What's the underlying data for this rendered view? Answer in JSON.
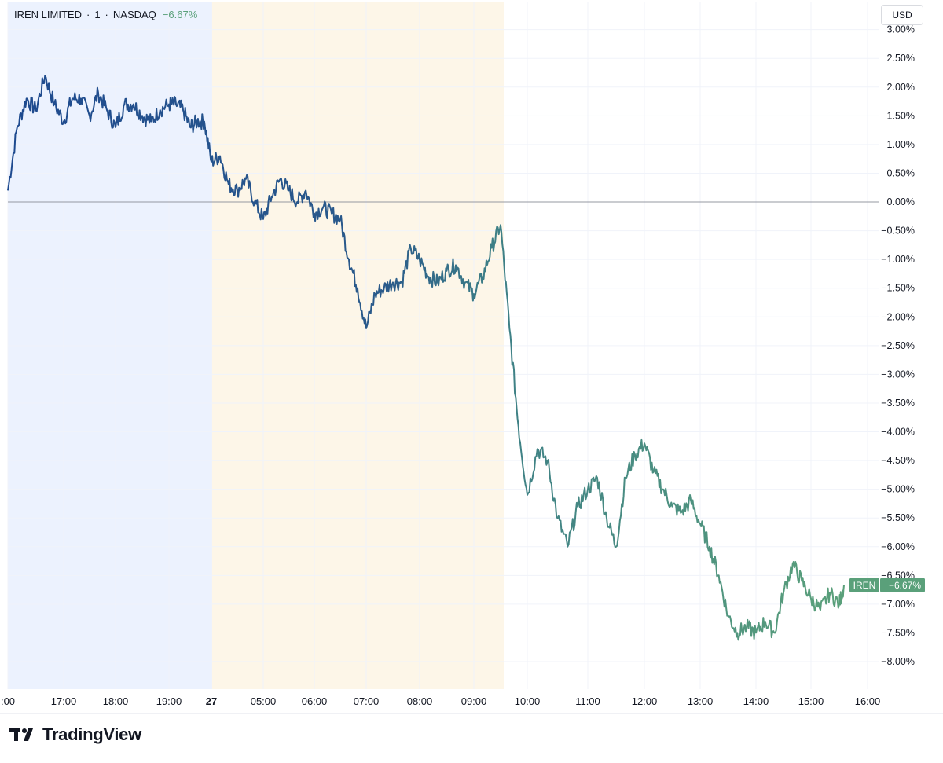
{
  "legend": {
    "symbol": "IREN LIMITED",
    "separator1": "·",
    "interval": "1",
    "separator2": "·",
    "exchange": "NASDAQ",
    "change": "−6.67%"
  },
  "currency_label": "USD",
  "brand": "TradingView",
  "colors": {
    "premarket_bg": "#ecf2fe",
    "postmarket_bg": "#fdf6e8",
    "early_line": "#1e4a8f",
    "late_line": "#5aa07a",
    "grid": "#f0f3fa",
    "zero_line": "#9598a1",
    "badge": "#5aa07a"
  },
  "chart_data": {
    "type": "line",
    "series": [
      {
        "name": "IREN",
        "x": [
          "16:00",
          "16:10",
          "16:20",
          "16:30",
          "16:40",
          "16:50",
          "17:00",
          "17:10",
          "17:20",
          "17:30",
          "17:40",
          "17:50",
          "18:00",
          "18:10",
          "18:20",
          "18:30",
          "18:40",
          "18:50",
          "19:00",
          "19:10",
          "19:20",
          "19:30",
          "19:40",
          "19:50",
          "04:00",
          "04:10",
          "04:20",
          "04:30",
          "04:40",
          "04:50",
          "05:00",
          "05:10",
          "05:20",
          "05:30",
          "05:40",
          "05:50",
          "06:00",
          "06:10",
          "06:20",
          "06:30",
          "06:40",
          "06:50",
          "07:00",
          "07:10",
          "07:20",
          "07:30",
          "07:40",
          "07:50",
          "08:00",
          "08:10",
          "08:20",
          "08:30",
          "08:40",
          "08:50",
          "09:00",
          "09:10",
          "09:20",
          "09:30",
          "09:40",
          "09:50",
          "10:00",
          "10:10",
          "10:20",
          "10:30",
          "10:40",
          "10:50",
          "11:00",
          "11:10",
          "11:20",
          "11:30",
          "11:40",
          "11:50",
          "12:00",
          "12:10",
          "12:20",
          "12:30",
          "12:40",
          "12:50",
          "13:00",
          "13:10",
          "13:20",
          "13:30",
          "13:40",
          "13:50",
          "14:00",
          "14:10",
          "14:20",
          "14:30",
          "14:40",
          "14:50",
          "15:00",
          "15:10",
          "15:20",
          "15:30",
          "15:35"
        ],
        "values": [
          0.2,
          1.3,
          1.8,
          1.6,
          2.2,
          1.7,
          1.4,
          1.8,
          1.8,
          1.5,
          1.9,
          1.6,
          1.3,
          1.7,
          1.7,
          1.5,
          1.4,
          1.6,
          1.7,
          1.7,
          1.6,
          1.3,
          1.4,
          1.4,
          0.7,
          0.8,
          0.3,
          0.2,
          0.4,
          0.0,
          -0.3,
          0.1,
          0.4,
          0.2,
          0.0,
          0.2,
          -0.2,
          -0.1,
          -0.2,
          -0.3,
          -1.0,
          -1.5,
          -2.2,
          -1.6,
          -1.5,
          -1.4,
          -1.4,
          -0.8,
          -1.0,
          -1.3,
          -1.4,
          -1.2,
          -1.1,
          -1.4,
          -1.6,
          -1.3,
          -0.8,
          -0.4,
          -2.2,
          -3.9,
          -5.1,
          -4.3,
          -4.5,
          -5.5,
          -6.0,
          -5.3,
          -5.0,
          -4.8,
          -5.5,
          -6.0,
          -4.8,
          -4.4,
          -4.2,
          -4.7,
          -5.0,
          -5.3,
          -5.4,
          -5.2,
          -5.6,
          -6.0,
          -6.5,
          -7.2,
          -7.5,
          -7.4,
          -7.5,
          -7.3,
          -7.5,
          -6.8,
          -6.3,
          -6.6,
          -6.9,
          -7.1,
          -6.8,
          -7.0,
          -6.67
        ]
      }
    ],
    "x_ticks": [
      ":00",
      "17:00",
      "18:00",
      "19:00",
      "27",
      "05:00",
      "06:00",
      "07:00",
      "08:00",
      "09:00",
      "10:00",
      "11:00",
      "12:00",
      "13:00",
      "14:00",
      "15:00",
      "16:00"
    ],
    "y_ticks": [
      "3.00%",
      "2.50%",
      "2.00%",
      "1.50%",
      "1.00%",
      "0.50%",
      "0.00%",
      "−0.50%",
      "−1.00%",
      "−1.50%",
      "−2.00%",
      "−2.50%",
      "−3.00%",
      "−3.50%",
      "−4.00%",
      "−4.50%",
      "−5.00%",
      "−5.50%",
      "−6.00%",
      "−6.50%",
      "−7.00%",
      "−7.50%",
      "−8.00%"
    ],
    "ylim": [
      -8.5,
      3.1
    ],
    "grid": true,
    "sessions": [
      {
        "name": "post-market",
        "from": "16:00",
        "to": "20:00"
      },
      {
        "name": "pre-market",
        "from": "04:00",
        "to": "09:30"
      },
      {
        "name": "regular",
        "from": "09:30",
        "to": "16:00"
      }
    ],
    "last_value_badge": {
      "symbol": "IREN",
      "value": "−6.67%"
    },
    "zero_line": 0
  }
}
